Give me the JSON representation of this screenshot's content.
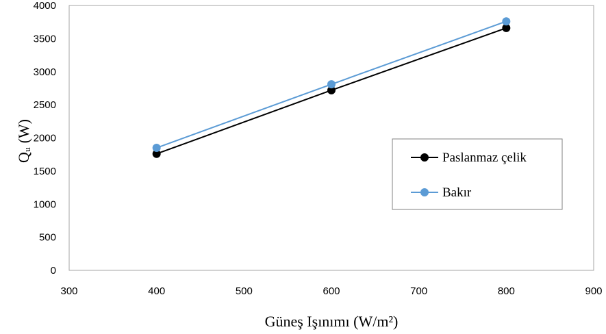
{
  "chart_data": {
    "type": "line",
    "xlabel": "Güneş Işınımı (W/m²)",
    "ylabel": "Qᵤ (W)",
    "xlim": [
      300,
      900
    ],
    "ylim": [
      0,
      4000
    ],
    "x_ticks": [
      "300",
      "400",
      "500",
      "600",
      "700",
      "800",
      "900"
    ],
    "y_ticks": [
      "0",
      "500",
      "1000",
      "1500",
      "2000",
      "2500",
      "3000",
      "3500",
      "4000"
    ],
    "grid": false,
    "legend_position": "right",
    "series": [
      {
        "name": "Paslanmaz çelik",
        "color": "#000000",
        "x": [
          400,
          600,
          800
        ],
        "y": [
          1760,
          2720,
          3660
        ]
      },
      {
        "name": "Bakır",
        "color": "#5b9bd5",
        "x": [
          400,
          600,
          800
        ],
        "y": [
          1850,
          2810,
          3760
        ]
      }
    ]
  }
}
